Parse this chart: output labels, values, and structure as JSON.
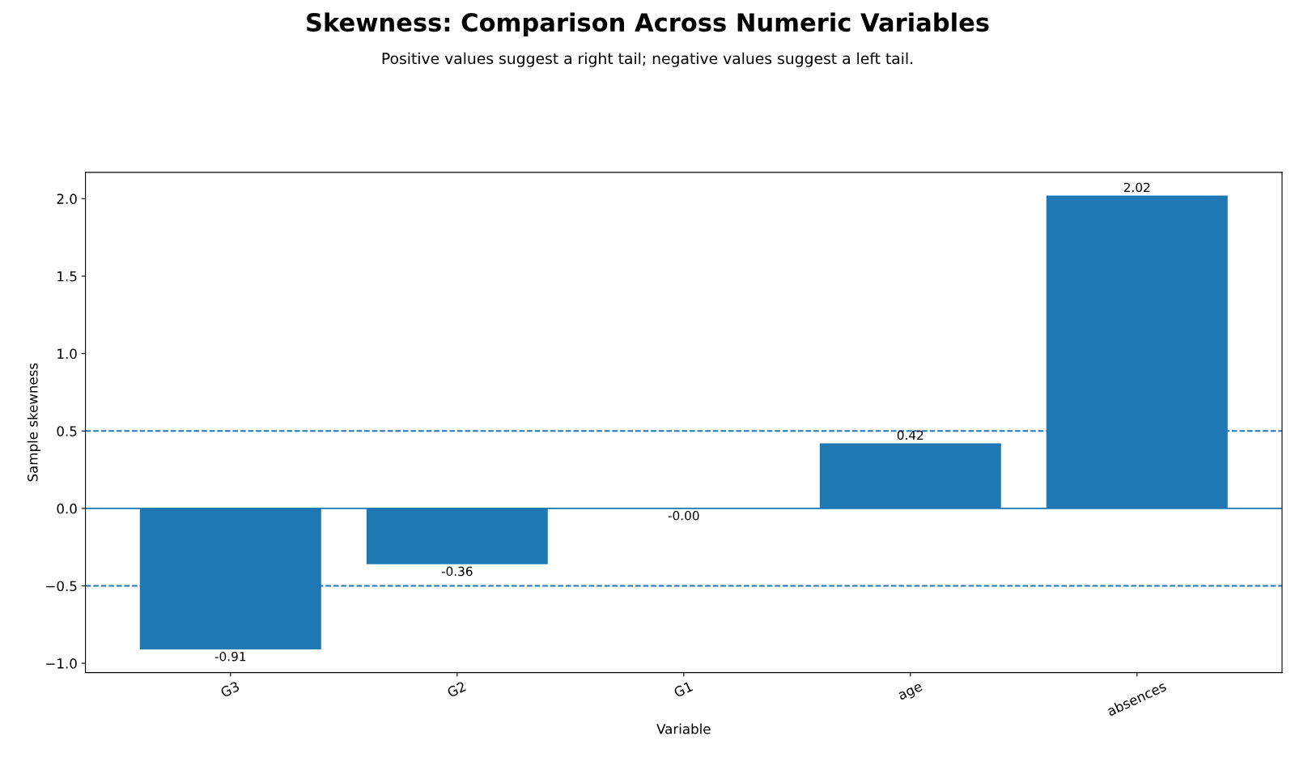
{
  "chart_data": {
    "type": "bar",
    "title": "Skewness: Comparison Across Numeric Variables",
    "subtitle": "Positive values suggest a right tail; negative values suggest a left tail.",
    "xlabel": "Variable",
    "ylabel": "Sample skewness",
    "categories": [
      "G3",
      "G2",
      "G1",
      "age",
      "absences"
    ],
    "values": [
      -0.91,
      -0.36,
      0.0,
      0.42,
      2.02
    ],
    "value_labels": [
      "-0.91",
      "-0.36",
      "-0.00",
      "0.42",
      "2.02"
    ],
    "color": "#1f77b4",
    "ylim": [
      -1.06,
      2.17
    ],
    "yticks": [
      {
        "value": -1.0,
        "label": "−1.0"
      },
      {
        "value": -0.5,
        "label": "−0.5"
      },
      {
        "value": 0.0,
        "label": "0.0"
      },
      {
        "value": 0.5,
        "label": "0.5"
      },
      {
        "value": 1.0,
        "label": "1.0"
      },
      {
        "value": 1.5,
        "label": "1.5"
      },
      {
        "value": 2.0,
        "label": "2.0"
      }
    ],
    "ref_lines": [
      {
        "axis": "y",
        "value": 0,
        "color": "#1f77b4",
        "line_style": "solid"
      },
      {
        "axis": "y",
        "value": 0.5,
        "color": "#1f77b4",
        "line_style": "dashed"
      },
      {
        "axis": "y",
        "value": -0.5,
        "color": "#1f77b4",
        "line_style": "dashed"
      }
    ],
    "grid": false
  }
}
